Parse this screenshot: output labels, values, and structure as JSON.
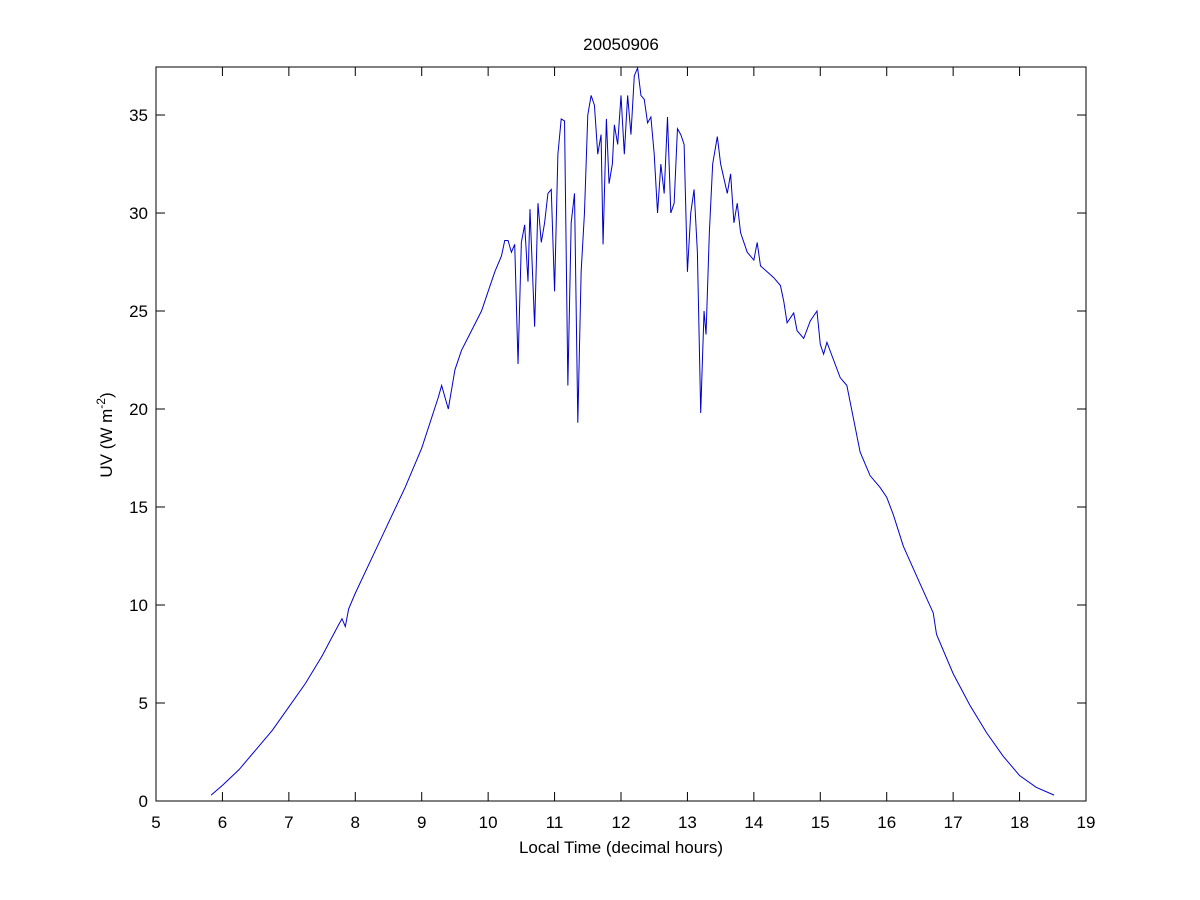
{
  "chart_data": {
    "type": "line",
    "title": "20050906",
    "xlabel": "Local Time (decimal hours)",
    "ylabel": {
      "text": "UV (W m",
      "superscript": "-2",
      "suffix": ")"
    },
    "color": "#0000cc",
    "xlim": [
      5,
      19
    ],
    "ylim": [
      0,
      37.45
    ],
    "xticks": [
      5,
      6,
      7,
      8,
      9,
      10,
      11,
      12,
      13,
      14,
      15,
      16,
      17,
      18,
      19
    ],
    "yticks": [
      0,
      5,
      10,
      15,
      20,
      25,
      30,
      35
    ],
    "x": [
      5.83,
      6.0,
      6.25,
      6.5,
      6.75,
      7.0,
      7.25,
      7.5,
      7.75,
      7.8,
      7.85,
      7.9,
      8.0,
      8.25,
      8.5,
      8.75,
      9.0,
      9.25,
      9.3,
      9.4,
      9.5,
      9.6,
      9.75,
      9.9,
      10.0,
      10.1,
      10.2,
      10.25,
      10.3,
      10.35,
      10.4,
      10.45,
      10.5,
      10.55,
      10.6,
      10.63,
      10.7,
      10.75,
      10.8,
      10.85,
      10.9,
      10.95,
      11.0,
      11.05,
      11.1,
      11.15,
      11.2,
      11.25,
      11.3,
      11.35,
      11.4,
      11.45,
      11.5,
      11.55,
      11.6,
      11.65,
      11.7,
      11.73,
      11.78,
      11.82,
      11.87,
      11.9,
      11.95,
      12.0,
      12.05,
      12.1,
      12.15,
      12.2,
      12.25,
      12.3,
      12.35,
      12.4,
      12.45,
      12.5,
      12.55,
      12.6,
      12.65,
      12.7,
      12.75,
      12.8,
      12.85,
      12.9,
      12.95,
      13.0,
      13.05,
      13.1,
      13.15,
      13.2,
      13.25,
      13.28,
      13.33,
      13.38,
      13.45,
      13.5,
      13.6,
      13.65,
      13.7,
      13.75,
      13.8,
      13.9,
      14.0,
      14.05,
      14.1,
      14.2,
      14.3,
      14.4,
      14.45,
      14.5,
      14.6,
      14.65,
      14.75,
      14.85,
      14.95,
      15.0,
      15.05,
      15.1,
      15.2,
      15.3,
      15.4,
      15.5,
      15.6,
      15.75,
      15.9,
      16.0,
      16.1,
      16.25,
      16.5,
      16.7,
      16.75,
      17.0,
      17.25,
      17.5,
      17.75,
      18.0,
      18.25,
      18.52
    ],
    "values": [
      0.3,
      0.8,
      1.6,
      2.6,
      3.6,
      4.8,
      6.0,
      7.4,
      9.0,
      9.3,
      8.9,
      9.8,
      10.6,
      12.4,
      14.2,
      16.0,
      18.0,
      20.6,
      21.2,
      20.0,
      22.0,
      23.0,
      24.0,
      25.0,
      26.0,
      27.0,
      27.8,
      28.6,
      28.6,
      28.0,
      28.4,
      22.3,
      28.5,
      29.4,
      26.5,
      30.2,
      24.2,
      30.5,
      28.5,
      29.5,
      31.0,
      31.2,
      26.0,
      33.0,
      34.8,
      34.7,
      21.2,
      29.5,
      31.0,
      19.3,
      27.0,
      30.0,
      35.0,
      36.0,
      35.5,
      33.0,
      34.0,
      28.4,
      34.8,
      31.5,
      32.5,
      34.5,
      33.5,
      36.0,
      33.0,
      36.0,
      34.0,
      37.0,
      37.4,
      36.0,
      35.8,
      34.6,
      34.9,
      33.0,
      30.0,
      32.5,
      31.0,
      34.9,
      30.0,
      30.5,
      34.3,
      34.0,
      33.5,
      27.0,
      30.0,
      31.2,
      28.0,
      19.8,
      25.0,
      23.8,
      29.0,
      32.5,
      33.9,
      32.5,
      31.0,
      32.0,
      29.5,
      30.5,
      29.0,
      28.0,
      27.6,
      28.5,
      27.3,
      27.0,
      26.7,
      26.3,
      25.5,
      24.4,
      24.9,
      24.0,
      23.6,
      24.5,
      25.0,
      23.3,
      22.8,
      23.4,
      22.5,
      21.6,
      21.2,
      19.5,
      17.8,
      16.6,
      16.0,
      15.5,
      14.6,
      13.0,
      11.1,
      9.6,
      8.5,
      6.5,
      4.9,
      3.5,
      2.3,
      1.3,
      0.7,
      0.3
    ]
  }
}
